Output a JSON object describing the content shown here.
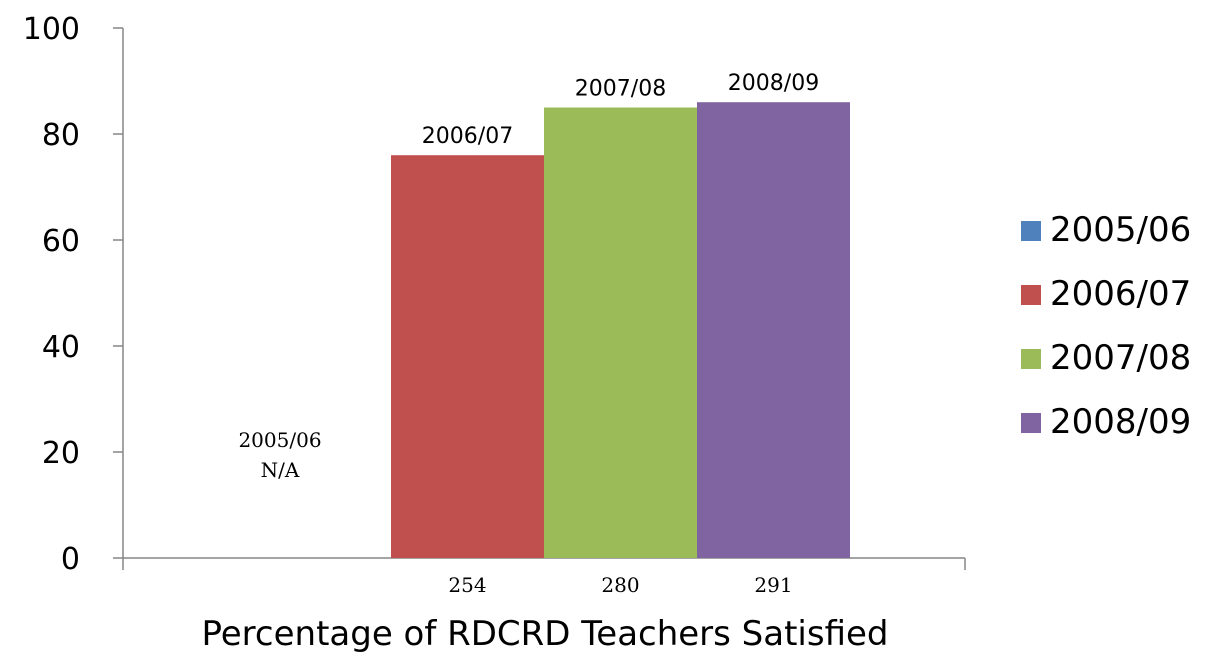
{
  "chart_data": {
    "type": "bar",
    "title": "",
    "xlabel": "Percentage of RDCRD Teachers Satisfied",
    "ylabel": "",
    "ylim": [
      0,
      100
    ],
    "yticks": [
      0,
      20,
      40,
      60,
      80,
      100
    ],
    "grid": false,
    "legend_position": "right",
    "series": [
      {
        "name": "2005/06",
        "value": null,
        "bar_label": "2005/06",
        "note": "N/A",
        "count": "",
        "color": "#4F81BD"
      },
      {
        "name": "2006/07",
        "value": 76,
        "bar_label": "2006/07",
        "note": "",
        "count": "254",
        "color": "#C0504D"
      },
      {
        "name": "2007/08",
        "value": 85,
        "bar_label": "2007/08",
        "note": "",
        "count": "280",
        "color": "#9BBB59"
      },
      {
        "name": "2008/09",
        "value": 86,
        "bar_label": "2008/09",
        "note": "",
        "count": "291",
        "color": "#8064A2"
      }
    ]
  }
}
